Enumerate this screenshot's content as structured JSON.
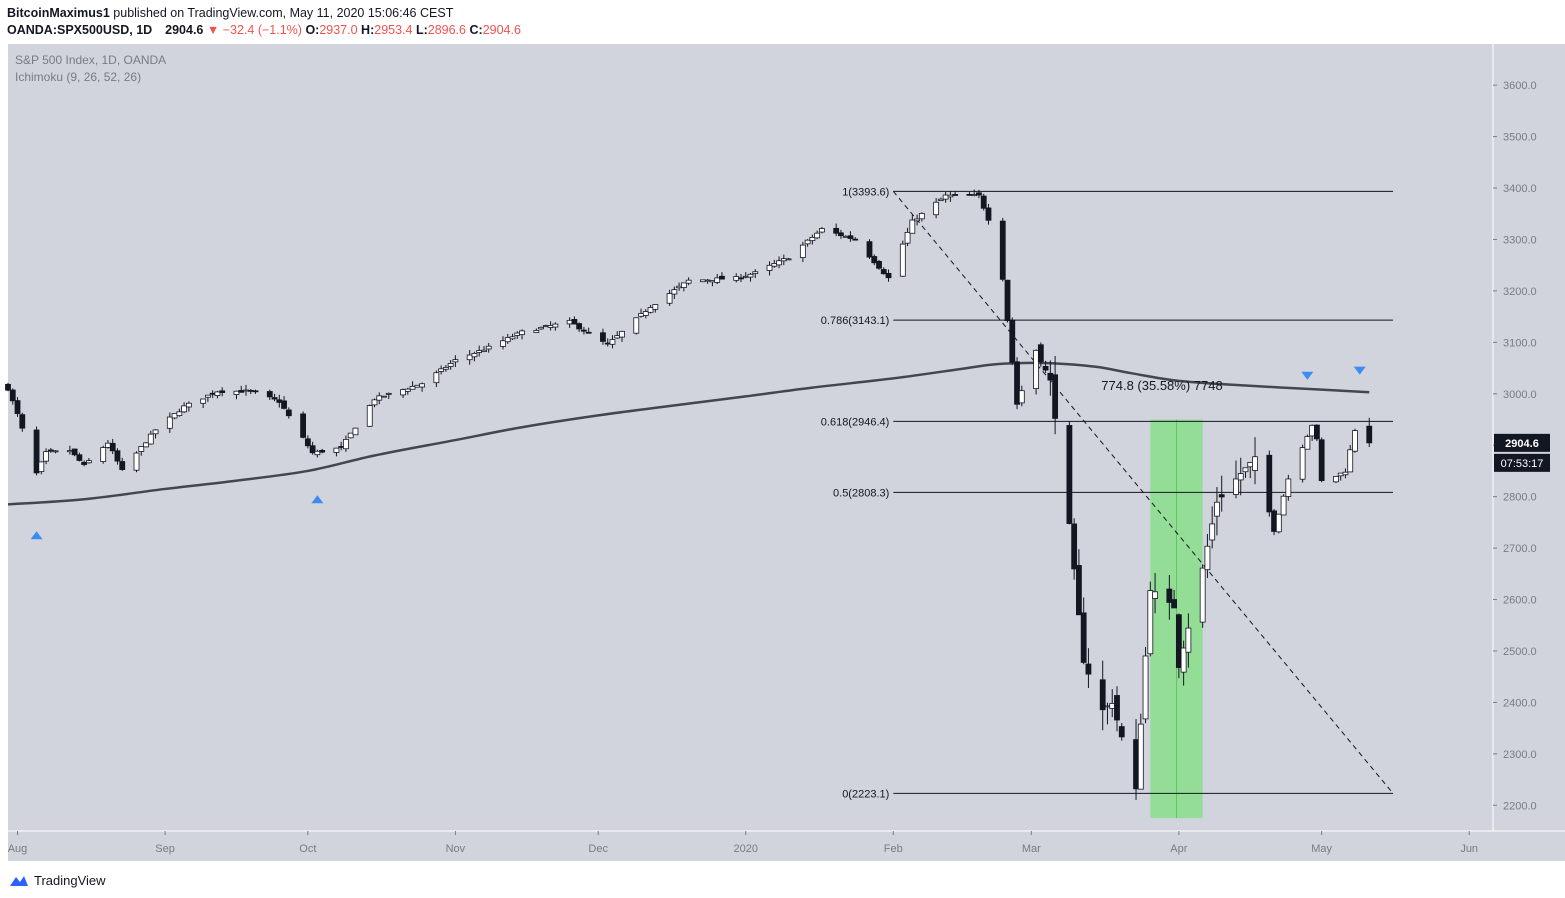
{
  "header": {
    "author": "BitcoinMaximus1",
    "published": "published on TradingView.com, May 11, 2020 15:06:46 CEST",
    "symbol": "OANDA:SPX500USD, 1D",
    "last": "2904.6",
    "change_arrow": "▼",
    "change": "−32.4 (−1.1%)",
    "open_label": "O:",
    "open": "2937.0",
    "high_label": "H:",
    "high": "2953.4",
    "low_label": "L:",
    "low": "2896.6",
    "close_label": "C:",
    "close": "2904.6"
  },
  "legend": {
    "title": "S&P 500 Index, 1D, OANDA",
    "indicator": "Ichimoku (9, 26, 52, 26)"
  },
  "price_axis": {
    "ticks": [
      "3600.0",
      "3500.0",
      "3400.0",
      "3300.0",
      "3200.0",
      "3100.0",
      "3000.0",
      "2900.0",
      "2800.0",
      "2700.0",
      "2600.0",
      "2500.0",
      "2400.0",
      "2300.0",
      "2200.0"
    ],
    "last_price_badge": "2904.6",
    "countdown_badge": "07:53:17"
  },
  "time_axis": {
    "labels": [
      "Aug",
      "Sep",
      "Oct",
      "Nov",
      "Dec",
      "2020",
      "Feb",
      "Mar",
      "Apr",
      "May",
      "Jun"
    ]
  },
  "fib_labels": [
    "1(3393.6)",
    "0.786(3143.1)",
    "0.618(2946.4)",
    "0.5(2808.3)",
    "0(2223.1)"
  ],
  "measure_label": "774.8 (35.58%) 7748",
  "footer": {
    "brand": "TradingView"
  },
  "colors": {
    "background": "#d1d4dc",
    "up_candle": "#ffffff",
    "down_candle": "#131722",
    "moving_average": "#434651",
    "highlight_zone": "#7fe07f",
    "marker": "#3d8cf0",
    "red": "#ef5350"
  },
  "chart_data": {
    "type": "candlestick",
    "title": "S&P 500 Index, 1D, OANDA",
    "indicator": "Ichimoku (9, 26, 52, 26)",
    "ylim": [
      2150,
      3680
    ],
    "x_range": [
      "2019-07-30",
      "2020-06-06"
    ],
    "price_ticks": [
      3600,
      3500,
      3400,
      3300,
      3200,
      3100,
      3000,
      2900,
      2800,
      2700,
      2600,
      2500,
      2400,
      2300,
      2200
    ],
    "time_labels": [
      {
        "label": "Aug",
        "date": "2019-08-01"
      },
      {
        "label": "Sep",
        "date": "2019-09-01"
      },
      {
        "label": "Oct",
        "date": "2019-10-01"
      },
      {
        "label": "Nov",
        "date": "2019-11-01"
      },
      {
        "label": "Dec",
        "date": "2019-12-01"
      },
      {
        "label": "2020",
        "date": "2020-01-01"
      },
      {
        "label": "Feb",
        "date": "2020-02-01"
      },
      {
        "label": "Mar",
        "date": "2020-03-01"
      },
      {
        "label": "Apr",
        "date": "2020-04-01"
      },
      {
        "label": "May",
        "date": "2020-05-01"
      },
      {
        "label": "Jun",
        "date": "2020-06-01"
      }
    ],
    "close_path": [
      [
        "2019-07-30",
        3010
      ],
      [
        "2019-08-01",
        2960
      ],
      [
        "2019-08-05",
        2845
      ],
      [
        "2019-08-07",
        2885
      ],
      [
        "2019-08-12",
        2890
      ],
      [
        "2019-08-15",
        2860
      ],
      [
        "2019-08-20",
        2905
      ],
      [
        "2019-08-23",
        2850
      ],
      [
        "2019-08-30",
        2930
      ],
      [
        "2019-09-05",
        2975
      ],
      [
        "2019-09-12",
        3005
      ],
      [
        "2019-09-19",
        3005
      ],
      [
        "2019-09-25",
        2985
      ],
      [
        "2019-10-02",
        2885
      ],
      [
        "2019-10-08",
        2895
      ],
      [
        "2019-10-15",
        2990
      ],
      [
        "2019-10-25",
        3020
      ],
      [
        "2019-11-01",
        3065
      ],
      [
        "2019-11-08",
        3090
      ],
      [
        "2019-11-15",
        3120
      ],
      [
        "2019-11-25",
        3140
      ],
      [
        "2019-12-03",
        3095
      ],
      [
        "2019-12-12",
        3170
      ],
      [
        "2019-12-20",
        3220
      ],
      [
        "2019-12-30",
        3225
      ],
      [
        "2020-01-03",
        3235
      ],
      [
        "2020-01-10",
        3265
      ],
      [
        "2020-01-17",
        3320
      ],
      [
        "2020-01-24",
        3300
      ],
      [
        "2020-01-31",
        3225
      ],
      [
        "2020-02-05",
        3335
      ],
      [
        "2020-02-12",
        3385
      ],
      [
        "2020-02-19",
        3385
      ],
      [
        "2020-02-21",
        3340
      ],
      [
        "2020-02-24",
        3225
      ],
      [
        "2020-02-27",
        2980
      ],
      [
        "2020-03-02",
        3085
      ],
      [
        "2020-03-05",
        3025
      ],
      [
        "2020-03-09",
        2745
      ],
      [
        "2020-03-12",
        2480
      ],
      [
        "2020-03-16",
        2385
      ],
      [
        "2020-03-18",
        2400
      ],
      [
        "2020-03-23",
        2230
      ],
      [
        "2020-03-26",
        2620
      ],
      [
        "2020-03-31",
        2585
      ],
      [
        "2020-04-01",
        2470
      ],
      [
        "2020-04-06",
        2660
      ],
      [
        "2020-04-09",
        2790
      ],
      [
        "2020-04-14",
        2845
      ],
      [
        "2020-04-17",
        2875
      ],
      [
        "2020-04-21",
        2735
      ],
      [
        "2020-04-24",
        2835
      ],
      [
        "2020-04-29",
        2940
      ],
      [
        "2020-04-30",
        2910
      ],
      [
        "2020-05-01",
        2830
      ],
      [
        "2020-05-04",
        2840
      ],
      [
        "2020-05-06",
        2850
      ],
      [
        "2020-05-08",
        2930
      ],
      [
        "2020-05-11",
        2904.6
      ]
    ],
    "last_candle": {
      "open": 2937.0,
      "high": 2953.4,
      "low": 2896.6,
      "close": 2904.6
    },
    "moving_average": [
      [
        "2019-07-30",
        2785
      ],
      [
        "2019-08-15",
        2795
      ],
      [
        "2019-09-01",
        2815
      ],
      [
        "2019-09-15",
        2830
      ],
      [
        "2019-10-01",
        2850
      ],
      [
        "2019-10-15",
        2880
      ],
      [
        "2019-11-01",
        2910
      ],
      [
        "2019-11-15",
        2935
      ],
      [
        "2019-12-01",
        2958
      ],
      [
        "2019-12-15",
        2975
      ],
      [
        "2020-01-01",
        2995
      ],
      [
        "2020-01-15",
        3012
      ],
      [
        "2020-02-01",
        3030
      ],
      [
        "2020-02-15",
        3048
      ],
      [
        "2020-02-22",
        3057
      ],
      [
        "2020-03-01",
        3060
      ],
      [
        "2020-03-08",
        3058
      ],
      [
        "2020-03-15",
        3052
      ],
      [
        "2020-03-22",
        3040
      ],
      [
        "2020-04-01",
        3025
      ],
      [
        "2020-04-15",
        3016
      ],
      [
        "2020-05-01",
        3008
      ],
      [
        "2020-05-11",
        3003
      ]
    ],
    "fibonacci": {
      "from_date": "2020-02-01",
      "to_date": "2020-05-16",
      "levels": [
        {
          "ratio": "1",
          "price": 3393.6
        },
        {
          "ratio": "0.786",
          "price": 3143.1
        },
        {
          "ratio": "0.618",
          "price": 2946.4
        },
        {
          "ratio": "0.5",
          "price": 2808.3
        },
        {
          "ratio": "0",
          "price": 2223.1
        }
      ]
    },
    "trend_line": {
      "from": [
        "2020-02-01",
        3393.6
      ],
      "to": [
        "2020-05-16",
        2223.1
      ]
    },
    "highlight_range": {
      "start_date": "2020-03-26",
      "end_date": "2020-04-06",
      "low": 2175,
      "high": 2950
    },
    "markers": [
      {
        "date": "2019-08-05",
        "price": 2725,
        "direction": "up"
      },
      {
        "date": "2019-10-03",
        "price": 2795,
        "direction": "up"
      },
      {
        "date": "2020-04-28",
        "price": 3035,
        "direction": "down"
      },
      {
        "date": "2020-05-09",
        "price": 3045,
        "direction": "down"
      }
    ]
  }
}
